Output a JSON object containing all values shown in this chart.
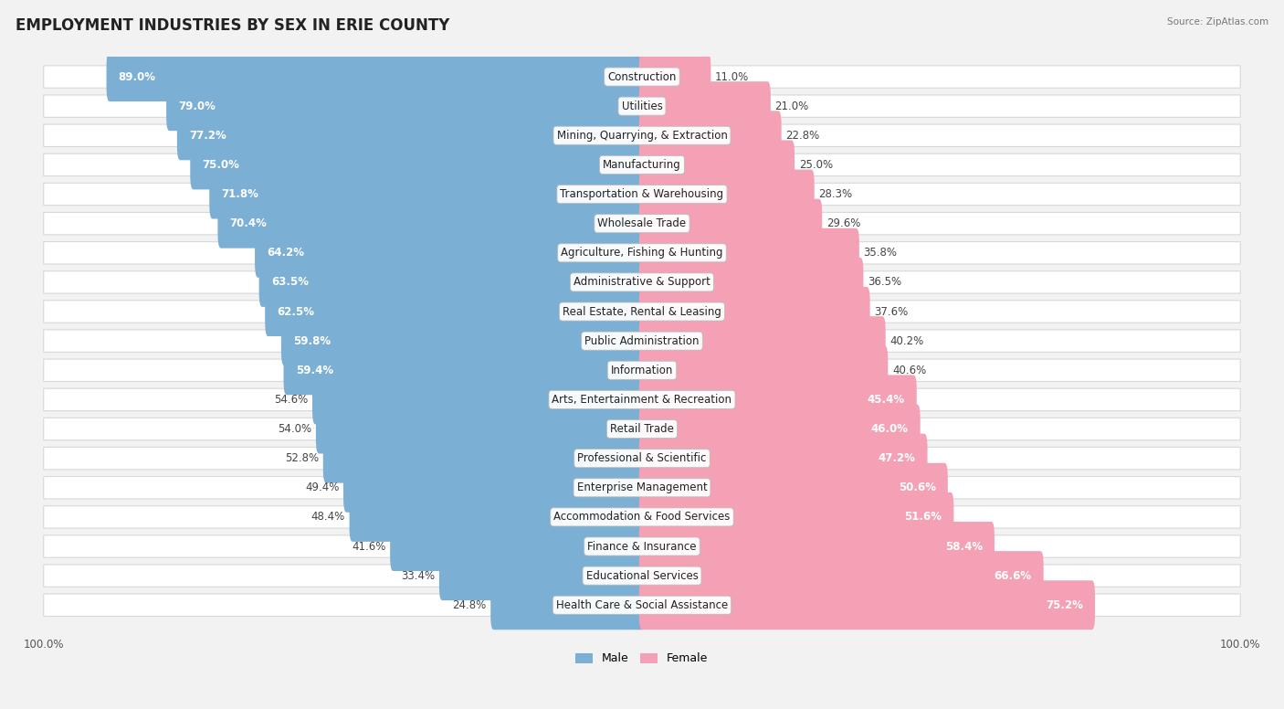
{
  "title": "EMPLOYMENT INDUSTRIES BY SEX IN ERIE COUNTY",
  "source": "Source: ZipAtlas.com",
  "industries": [
    "Construction",
    "Utilities",
    "Mining, Quarrying, & Extraction",
    "Manufacturing",
    "Transportation & Warehousing",
    "Wholesale Trade",
    "Agriculture, Fishing & Hunting",
    "Administrative & Support",
    "Real Estate, Rental & Leasing",
    "Public Administration",
    "Information",
    "Arts, Entertainment & Recreation",
    "Retail Trade",
    "Professional & Scientific",
    "Enterprise Management",
    "Accommodation & Food Services",
    "Finance & Insurance",
    "Educational Services",
    "Health Care & Social Assistance"
  ],
  "male_pct": [
    89.0,
    79.0,
    77.2,
    75.0,
    71.8,
    70.4,
    64.2,
    63.5,
    62.5,
    59.8,
    59.4,
    54.6,
    54.0,
    52.8,
    49.4,
    48.4,
    41.6,
    33.4,
    24.8
  ],
  "female_pct": [
    11.0,
    21.0,
    22.8,
    25.0,
    28.3,
    29.6,
    35.8,
    36.5,
    37.6,
    40.2,
    40.6,
    45.4,
    46.0,
    47.2,
    50.6,
    51.6,
    58.4,
    66.6,
    75.2
  ],
  "male_color": "#7bafd4",
  "female_color": "#f4a0b5",
  "background_color": "#f2f2f2",
  "title_fontsize": 12,
  "label_fontsize": 8.5,
  "industry_fontsize": 8.5,
  "tick_fontsize": 8.5
}
